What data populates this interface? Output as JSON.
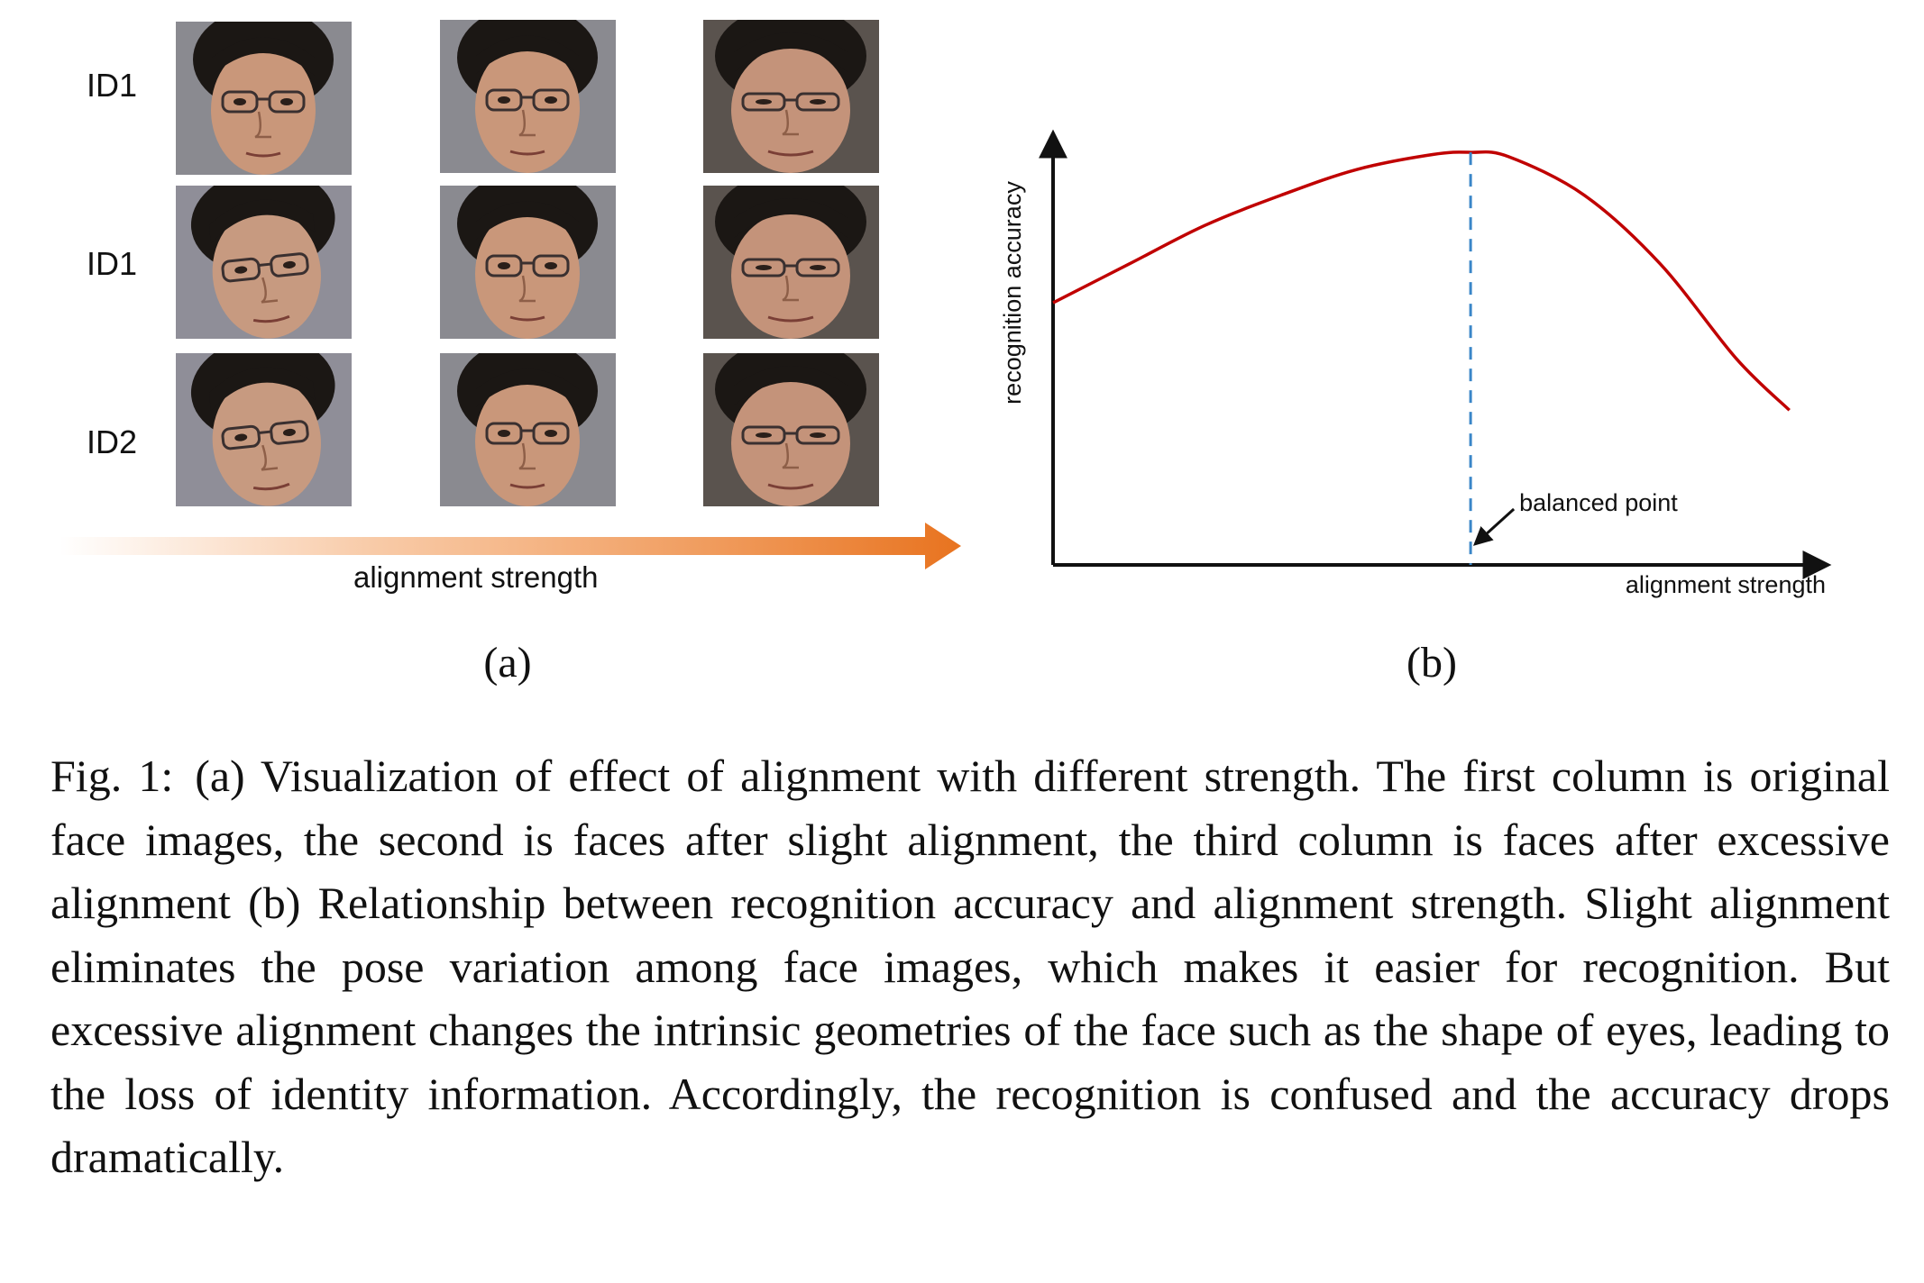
{
  "panel_a": {
    "row_labels": [
      "ID1",
      "ID1",
      "ID2"
    ],
    "axis_label": "alignment  strength",
    "tag": "(a)"
  },
  "panel_b": {
    "tag": "(b)"
  },
  "chart_data": {
    "type": "line",
    "title": "",
    "xlabel": "alignment strength",
    "ylabel": "recognition accuracy",
    "xlim": [
      0,
      1
    ],
    "ylim": [
      0,
      1
    ],
    "grid": false,
    "ticks": false,
    "series": [
      {
        "name": "recognition accuracy",
        "color": "#c00000",
        "x": [
          0.0,
          0.1,
          0.2,
          0.3,
          0.4,
          0.5,
          0.55,
          0.6,
          0.7,
          0.8,
          0.9,
          0.97
        ],
        "y": [
          0.61,
          0.7,
          0.79,
          0.86,
          0.92,
          0.955,
          0.96,
          0.95,
          0.86,
          0.7,
          0.48,
          0.36
        ]
      }
    ],
    "markers": [
      {
        "name": "balanced point",
        "x": 0.55,
        "style": "dashed vertical line",
        "color": "#3a86c8",
        "annotation": "balanced point"
      }
    ]
  },
  "caption": {
    "label": "Fig. 1:",
    "text": "(a) Visualization of effect of alignment with different strength. The first column is original face images, the second is faces after slight alignment, the third column is faces after excessive alignment (b) Relationship between recognition accuracy and alignment strength. Slight alignment eliminates the pose variation among face images, which makes it easier for recognition. But excessive alignment changes the intrinsic geometries of the face such as the shape of eyes, leading to the loss of identity information. Accordingly, the recognition is confused and the accuracy drops dramatically."
  }
}
